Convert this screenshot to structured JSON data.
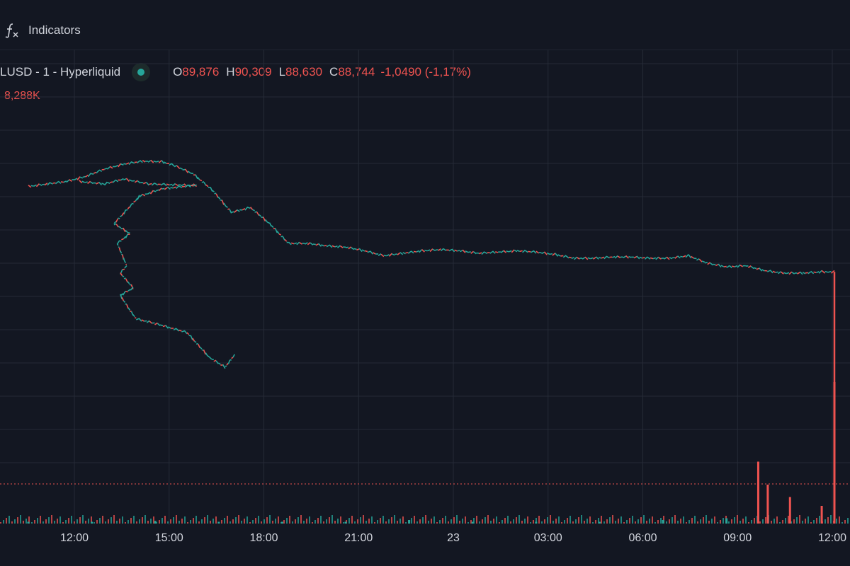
{
  "toolbar": {
    "indicators_label": "Indicators",
    "indicators_icon": "function-fx-icon"
  },
  "legend": {
    "symbol": "LUSD - 1 - Hyperliquid",
    "status_color": "#26a69a",
    "open_key": "O",
    "open": "89,876",
    "high_key": "H",
    "high": "90,309",
    "low_key": "L",
    "low": "88,630",
    "close_key": "C",
    "close": "88,744",
    "change": "-1,0490 (-1,17%)",
    "volume": "8,288K"
  },
  "colors": {
    "background": "#131722",
    "up": "#26a69a",
    "down": "#ef5350",
    "grid": "#252a36",
    "text": "#d1d4dc"
  },
  "time_axis": {
    "labels": [
      "12:00",
      "15:00",
      "18:00",
      "21:00",
      "23",
      "03:00",
      "06:00",
      "09:00",
      "12:00"
    ]
  },
  "chart_data": {
    "type": "candlestick",
    "x_ticks": [
      "12:00",
      "15:00",
      "18:00",
      "21:00",
      "23",
      "03:00",
      "06:00",
      "09:00",
      "12:00"
    ],
    "series": [
      {
        "x": [
          0,
          0.6,
          1.2,
          1.8,
          2.4,
          3.0,
          3.6,
          4.2,
          4.6,
          5.2,
          5.8,
          6.4,
          7.0,
          7.6,
          8.2,
          8.8,
          9.4,
          10.0,
          10.6,
          11.2,
          11.8,
          12.4,
          13.0,
          13.6,
          14.2,
          14.8,
          15.4,
          16.0,
          16.6,
          17.2,
          17.8,
          18.4,
          19.0,
          19.6,
          20.2,
          20.8,
          21.4,
          22.0,
          22.6,
          23.2,
          23.8,
          24.4,
          25.0,
          25.4
        ],
        "y": [
          0.79,
          0.8,
          0.81,
          0.83,
          0.86,
          0.88,
          0.892,
          0.89,
          0.875,
          0.84,
          0.775,
          0.685,
          0.705,
          0.64,
          0.56,
          0.56,
          0.55,
          0.545,
          0.53,
          0.51,
          0.52,
          0.53,
          0.535,
          0.53,
          0.52,
          0.525,
          0.53,
          0.525,
          0.515,
          0.5,
          0.5,
          0.505,
          0.505,
          0.5,
          0.5,
          0.51,
          0.48,
          0.465,
          0.47,
          0.45,
          0.44,
          0.44,
          0.445,
          0.445
        ]
      },
      {
        "x": [
          1.6,
          2.4,
          3.0,
          3.8,
          5.0,
          5.3,
          4.2,
          3.5,
          2.7,
          3.2,
          2.8,
          3.1,
          2.9,
          3.3,
          2.9,
          3.2,
          3.4,
          3.9,
          5.0,
          5.7,
          6.2,
          6.5
        ],
        "y": [
          0.81,
          0.8,
          0.82,
          0.8,
          0.795,
          0.795,
          0.78,
          0.75,
          0.64,
          0.6,
          0.56,
          0.47,
          0.44,
          0.38,
          0.35,
          0.29,
          0.255,
          0.24,
          0.2,
          0.1,
          0.06,
          0.11
        ]
      }
    ],
    "volume": {
      "x": [
        0,
        2,
        4,
        6,
        8,
        10,
        12,
        14,
        16,
        18,
        20,
        22,
        23.0,
        23.3,
        24.0,
        25.0,
        25.4
      ],
      "y": [
        0.01,
        0.01,
        0.015,
        0.01,
        0.01,
        0.01,
        0.02,
        0.01,
        0.01,
        0.01,
        0.02,
        0.03,
        0.35,
        0.22,
        0.15,
        0.1,
        0.8
      ]
    }
  }
}
